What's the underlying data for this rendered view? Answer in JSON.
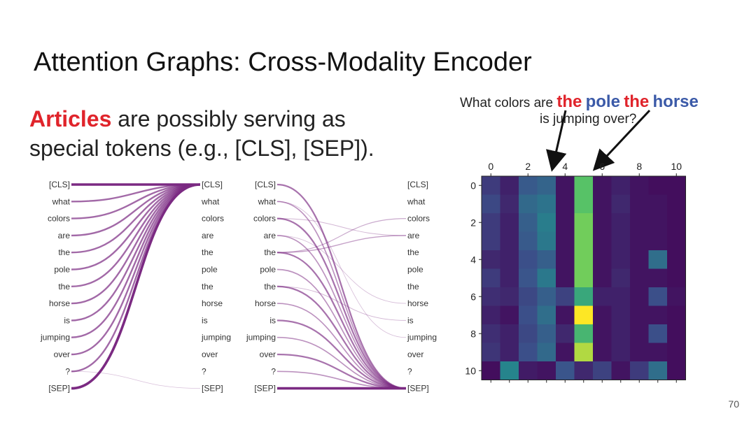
{
  "title": "Attention Graphs: Cross-Modality Encoder",
  "subtitle": {
    "highlight": "Articles",
    "line1_rest": " are possibly serving as",
    "line2": "special tokens (e.g., [CLS], [SEP])."
  },
  "question": {
    "w1": "What colors are ",
    "the1": "the",
    "pole": "pole",
    "the2": "the",
    "horse": "horse",
    "line2": "is jumping over?"
  },
  "tokens": [
    "[CLS]",
    "what",
    "colors",
    "are",
    "the",
    "pole",
    "the",
    "horse",
    "is",
    "jumping",
    "over",
    "?",
    "[SEP]"
  ],
  "colors": {
    "purple": "#7b2a82",
    "red": "#e0242b",
    "blue": "#3b5aa8"
  },
  "heatmap": {
    "xticks": [
      "0",
      "2",
      "4",
      "6",
      "8",
      "10"
    ],
    "yticks": [
      "0",
      "2",
      "4",
      "6",
      "8",
      "10"
    ],
    "values": [
      [
        0.18,
        0.1,
        0.28,
        0.32,
        0.06,
        0.72,
        0.06,
        0.1,
        0.06,
        0.04,
        0.04
      ],
      [
        0.22,
        0.12,
        0.34,
        0.38,
        0.06,
        0.72,
        0.06,
        0.12,
        0.06,
        0.06,
        0.04
      ],
      [
        0.18,
        0.1,
        0.3,
        0.42,
        0.06,
        0.78,
        0.06,
        0.1,
        0.06,
        0.06,
        0.04
      ],
      [
        0.18,
        0.1,
        0.28,
        0.4,
        0.06,
        0.78,
        0.06,
        0.1,
        0.06,
        0.06,
        0.04
      ],
      [
        0.12,
        0.1,
        0.24,
        0.3,
        0.06,
        0.78,
        0.06,
        0.1,
        0.06,
        0.36,
        0.04
      ],
      [
        0.18,
        0.1,
        0.26,
        0.4,
        0.06,
        0.78,
        0.06,
        0.12,
        0.06,
        0.06,
        0.04
      ],
      [
        0.14,
        0.12,
        0.22,
        0.3,
        0.2,
        0.6,
        0.1,
        0.1,
        0.06,
        0.24,
        0.06
      ],
      [
        0.1,
        0.06,
        0.24,
        0.36,
        0.06,
        1.0,
        0.06,
        0.1,
        0.06,
        0.06,
        0.04
      ],
      [
        0.14,
        0.1,
        0.22,
        0.3,
        0.12,
        0.66,
        0.06,
        0.1,
        0.06,
        0.24,
        0.04
      ],
      [
        0.16,
        0.1,
        0.24,
        0.34,
        0.06,
        0.88,
        0.06,
        0.1,
        0.06,
        0.06,
        0.04
      ],
      [
        0.04,
        0.45,
        0.08,
        0.06,
        0.26,
        0.12,
        0.2,
        0.06,
        0.18,
        0.36,
        0.04
      ]
    ]
  },
  "page_number": "70"
}
